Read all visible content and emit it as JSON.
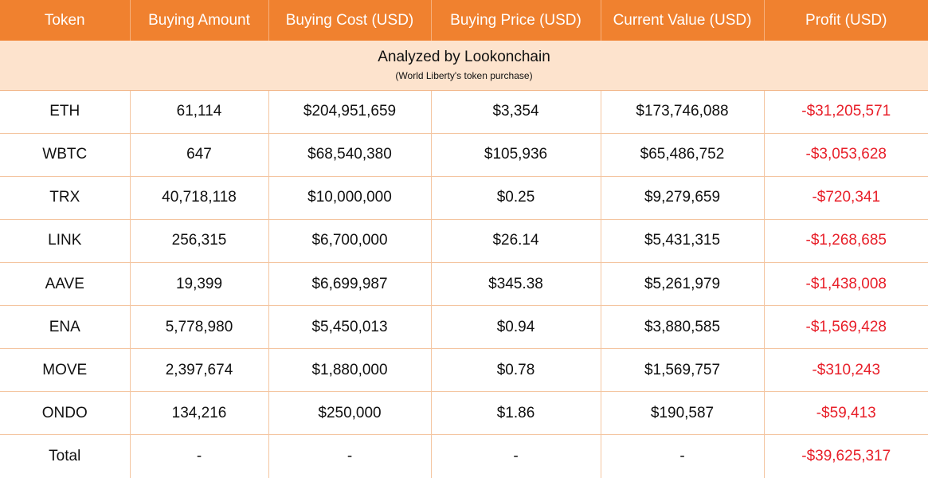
{
  "colors": {
    "header_bg": "#f0812f",
    "header_text": "#ffffff",
    "banner_bg": "#fde3cd",
    "border": "#f4c5a0",
    "loss_text": "#e8202a"
  },
  "table": {
    "headers": [
      "Token",
      "Buying Amount",
      "Buying Cost (USD)",
      "Buying Price (USD)",
      "Current Value (USD)",
      "Profit (USD)"
    ],
    "banner": {
      "title": "Analyzed by Lookonchain",
      "subtitle": "(World Liberty's token purchase)"
    },
    "rows": [
      [
        "ETH",
        "61,114",
        "$204,951,659",
        "$3,354",
        "$173,746,088",
        "-$31,205,571"
      ],
      [
        "WBTC",
        "647",
        "$68,540,380",
        "$105,936",
        "$65,486,752",
        "-$3,053,628"
      ],
      [
        "TRX",
        "40,718,118",
        "$10,000,000",
        "$0.25",
        "$9,279,659",
        "-$720,341"
      ],
      [
        "LINK",
        "256,315",
        "$6,700,000",
        "$26.14",
        "$5,431,315",
        "-$1,268,685"
      ],
      [
        "AAVE",
        "19,399",
        "$6,699,987",
        "$345.38",
        "$5,261,979",
        "-$1,438,008"
      ],
      [
        "ENA",
        "5,778,980",
        "$5,450,013",
        "$0.94",
        "$3,880,585",
        "-$1,569,428"
      ],
      [
        "MOVE",
        "2,397,674",
        "$1,880,000",
        "$0.78",
        "$1,569,757",
        "-$310,243"
      ],
      [
        "ONDO",
        "134,216",
        "$250,000",
        "$1.86",
        "$190,587",
        "-$59,413"
      ],
      [
        "Total",
        "-",
        "-",
        "-",
        "-",
        "-$39,625,317"
      ]
    ]
  }
}
